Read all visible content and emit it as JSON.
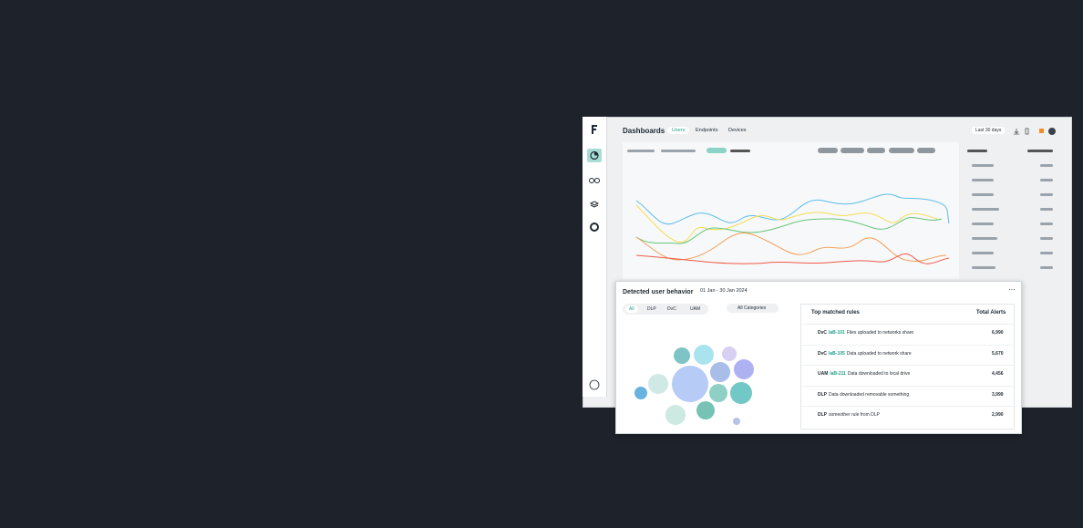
{
  "header": {
    "title": "Dashboards",
    "tabs": [
      "Users",
      "Endpoints",
      "Devices"
    ],
    "date_range": "Last 30 days"
  },
  "card": {
    "title": "Detected user behavior",
    "date": "01 Jan - 30 Jan 2024",
    "filters": [
      "All",
      "DLP",
      "DvC",
      "UAM"
    ],
    "category": "All Categories",
    "table": {
      "headers": [
        "Top matched rules",
        "Total Alerts"
      ],
      "rows": [
        {
          "source": "DvC",
          "rule_id": "IaB-101",
          "rule": "Files uploaded to networks share",
          "alerts": "6,990"
        },
        {
          "source": "DvC",
          "rule_id": "IaB-105",
          "rule": "Data uploaded to network share",
          "alerts": "5,670"
        },
        {
          "source": "UAM",
          "rule_id": "IaB-211",
          "rule": "Data downloaded to local drive",
          "alerts": "4,456"
        },
        {
          "source": "DLP",
          "rule": "Data downloaded removable something",
          "alerts": "3,999"
        },
        {
          "source": "DLP",
          "rule": "someother rule from DLP",
          "alerts": "2,990"
        }
      ]
    }
  }
}
